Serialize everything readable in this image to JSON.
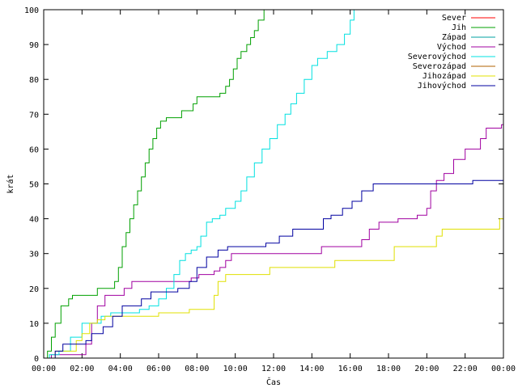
{
  "chart_data": {
    "type": "line",
    "xlabel": "Čas",
    "ylabel": "krát",
    "ylim": [
      0,
      100
    ],
    "xlim_hours": [
      0,
      24
    ],
    "x_ticks": [
      "00:00",
      "02:00",
      "04:00",
      "06:00",
      "08:00",
      "10:00",
      "12:00",
      "14:00",
      "16:00",
      "18:00",
      "20:00",
      "22:00",
      "00:00"
    ],
    "y_ticks": [
      0,
      10,
      20,
      30,
      40,
      50,
      60,
      70,
      80,
      90,
      100
    ],
    "legend_position": "top-right",
    "grid": false,
    "series": [
      {
        "name": "Sever",
        "color": "#ff0000",
        "points": []
      },
      {
        "name": "Jih",
        "color": "#00a000",
        "points": [
          [
            0,
            0
          ],
          [
            0.2,
            2
          ],
          [
            0.4,
            6
          ],
          [
            0.6,
            10
          ],
          [
            0.9,
            15
          ],
          [
            1.3,
            17
          ],
          [
            1.5,
            18
          ],
          [
            2.2,
            18
          ],
          [
            2.8,
            20
          ],
          [
            3.5,
            20
          ],
          [
            3.7,
            22
          ],
          [
            3.9,
            26
          ],
          [
            4.1,
            32
          ],
          [
            4.3,
            36
          ],
          [
            4.5,
            40
          ],
          [
            4.7,
            44
          ],
          [
            4.9,
            48
          ],
          [
            5.1,
            52
          ],
          [
            5.3,
            56
          ],
          [
            5.5,
            60
          ],
          [
            5.7,
            63
          ],
          [
            5.9,
            66
          ],
          [
            6.1,
            68
          ],
          [
            6.4,
            69
          ],
          [
            7.0,
            69
          ],
          [
            7.2,
            71
          ],
          [
            7.5,
            71
          ],
          [
            7.8,
            73
          ],
          [
            8.0,
            75
          ],
          [
            8.5,
            75
          ],
          [
            9.0,
            75
          ],
          [
            9.2,
            76
          ],
          [
            9.5,
            78
          ],
          [
            9.7,
            80
          ],
          [
            9.9,
            83
          ],
          [
            10.1,
            86
          ],
          [
            10.3,
            88
          ],
          [
            10.6,
            90
          ],
          [
            10.8,
            92
          ],
          [
            11.0,
            94
          ],
          [
            11.2,
            97
          ],
          [
            11.5,
            100
          ]
        ]
      },
      {
        "name": "Západ",
        "color": "#00a0a0",
        "points": []
      },
      {
        "name": "Východ",
        "color": "#a000a0",
        "points": [
          [
            0,
            0
          ],
          [
            0.4,
            1
          ],
          [
            2.0,
            1
          ],
          [
            2.2,
            4
          ],
          [
            2.5,
            10
          ],
          [
            2.8,
            15
          ],
          [
            3.2,
            18
          ],
          [
            3.8,
            18
          ],
          [
            4.2,
            20
          ],
          [
            4.6,
            22
          ],
          [
            5.5,
            22
          ],
          [
            7.0,
            22
          ],
          [
            7.7,
            23
          ],
          [
            8.1,
            24
          ],
          [
            8.9,
            25
          ],
          [
            9.2,
            26
          ],
          [
            9.5,
            28
          ],
          [
            9.8,
            30
          ],
          [
            10.5,
            30
          ],
          [
            13.5,
            30
          ],
          [
            14.5,
            32
          ],
          [
            16.2,
            32
          ],
          [
            16.6,
            34
          ],
          [
            17.0,
            37
          ],
          [
            17.5,
            39
          ],
          [
            18.5,
            40
          ],
          [
            19.5,
            41
          ],
          [
            20.0,
            43
          ],
          [
            20.2,
            48
          ],
          [
            20.5,
            51
          ],
          [
            20.9,
            53
          ],
          [
            21.4,
            57
          ],
          [
            22.0,
            60
          ],
          [
            22.8,
            63
          ],
          [
            23.1,
            66
          ],
          [
            23.9,
            67
          ],
          [
            24.0,
            68
          ]
        ]
      },
      {
        "name": "Severovýchod",
        "color": "#00e0e0",
        "points": [
          [
            0,
            0
          ],
          [
            0.3,
            1
          ],
          [
            0.8,
            2
          ],
          [
            1.4,
            6
          ],
          [
            2.0,
            10
          ],
          [
            3.0,
            12
          ],
          [
            3.5,
            13
          ],
          [
            4.5,
            13
          ],
          [
            5.0,
            14
          ],
          [
            5.5,
            15
          ],
          [
            6.0,
            17
          ],
          [
            6.4,
            20
          ],
          [
            6.8,
            24
          ],
          [
            7.1,
            28
          ],
          [
            7.4,
            30
          ],
          [
            7.7,
            31
          ],
          [
            8.0,
            32
          ],
          [
            8.2,
            35
          ],
          [
            8.5,
            39
          ],
          [
            8.8,
            40
          ],
          [
            9.2,
            41
          ],
          [
            9.5,
            43
          ],
          [
            10.0,
            45
          ],
          [
            10.3,
            48
          ],
          [
            10.6,
            52
          ],
          [
            11.0,
            56
          ],
          [
            11.4,
            60
          ],
          [
            11.8,
            63
          ],
          [
            12.2,
            67
          ],
          [
            12.6,
            70
          ],
          [
            12.9,
            73
          ],
          [
            13.2,
            76
          ],
          [
            13.6,
            80
          ],
          [
            14.0,
            84
          ],
          [
            14.3,
            86
          ],
          [
            14.8,
            88
          ],
          [
            15.3,
            90
          ],
          [
            15.7,
            93
          ],
          [
            16.0,
            97
          ],
          [
            16.2,
            100
          ]
        ]
      },
      {
        "name": "Severozápad",
        "color": "#b06000",
        "points": []
      },
      {
        "name": "Jihozápad",
        "color": "#e0e000",
        "points": [
          [
            0,
            0
          ],
          [
            0.6,
            2
          ],
          [
            1.3,
            2
          ],
          [
            1.7,
            5
          ],
          [
            2.0,
            7
          ],
          [
            2.4,
            10
          ],
          [
            2.8,
            11
          ],
          [
            3.2,
            12
          ],
          [
            4.5,
            12
          ],
          [
            6.0,
            13
          ],
          [
            7.3,
            13
          ],
          [
            7.6,
            14
          ],
          [
            8.5,
            14
          ],
          [
            8.9,
            18
          ],
          [
            9.1,
            22
          ],
          [
            9.5,
            24
          ],
          [
            10.5,
            24
          ],
          [
            11.5,
            24
          ],
          [
            11.8,
            26
          ],
          [
            14.5,
            26
          ],
          [
            15.2,
            28
          ],
          [
            17.0,
            28
          ],
          [
            18.3,
            32
          ],
          [
            19.5,
            32
          ],
          [
            20.0,
            32
          ],
          [
            20.5,
            35
          ],
          [
            20.8,
            37
          ],
          [
            21.5,
            37
          ],
          [
            23.5,
            37
          ],
          [
            23.8,
            40
          ],
          [
            24.0,
            40
          ]
        ]
      },
      {
        "name": "Jihovýchod",
        "color": "#0000a0",
        "points": [
          [
            0,
            0
          ],
          [
            0.6,
            2
          ],
          [
            1.0,
            4
          ],
          [
            2.0,
            4
          ],
          [
            2.2,
            5
          ],
          [
            2.5,
            7
          ],
          [
            3.1,
            9
          ],
          [
            3.6,
            12
          ],
          [
            4.1,
            15
          ],
          [
            5.1,
            17
          ],
          [
            5.6,
            19
          ],
          [
            6.5,
            19
          ],
          [
            7.0,
            20
          ],
          [
            7.6,
            22
          ],
          [
            8.0,
            26
          ],
          [
            8.5,
            29
          ],
          [
            9.1,
            31
          ],
          [
            9.6,
            32
          ],
          [
            10.5,
            32
          ],
          [
            11.6,
            33
          ],
          [
            12.3,
            35
          ],
          [
            13.0,
            37
          ],
          [
            14.0,
            37
          ],
          [
            14.6,
            40
          ],
          [
            15.0,
            41
          ],
          [
            15.6,
            43
          ],
          [
            16.1,
            45
          ],
          [
            16.6,
            48
          ],
          [
            17.2,
            50
          ],
          [
            18.0,
            50
          ],
          [
            20.0,
            50
          ],
          [
            22.0,
            50
          ],
          [
            22.4,
            51
          ],
          [
            24.0,
            51
          ]
        ]
      }
    ]
  }
}
